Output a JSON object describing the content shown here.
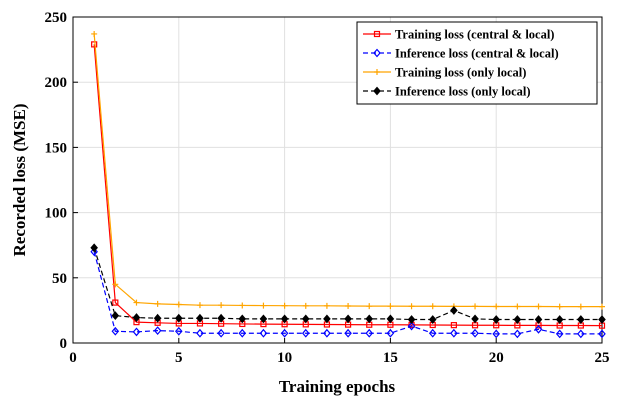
{
  "chart_data": {
    "type": "line",
    "xlabel": "Training epochs",
    "ylabel": "Recorded loss (MSE)",
    "xlim": [
      0,
      25
    ],
    "ylim": [
      0,
      250
    ],
    "xticks": [
      0,
      5,
      10,
      15,
      20,
      25
    ],
    "yticks": [
      0,
      50,
      100,
      150,
      200,
      250
    ],
    "grid": true,
    "legend_position": "top-right",
    "x": [
      1,
      2,
      3,
      4,
      5,
      6,
      7,
      8,
      9,
      10,
      11,
      12,
      13,
      14,
      15,
      16,
      17,
      18,
      19,
      20,
      21,
      22,
      23,
      24,
      25
    ],
    "series": [
      {
        "name": "Training loss (central & local)",
        "color": "#ff0000",
        "line_style": "solid",
        "marker": "square",
        "values": [
          229,
          31,
          16,
          15.5,
          15,
          15,
          14.8,
          14.6,
          14.5,
          14.4,
          14.3,
          14.2,
          14.1,
          14,
          14,
          13.9,
          13.8,
          13.7,
          13.6,
          13.6,
          13.5,
          13.5,
          13.4,
          13.4,
          13.3
        ]
      },
      {
        "name": "Inference loss (central & local)",
        "color": "#0000ff",
        "line_style": "dashed",
        "marker": "diamond",
        "values": [
          70,
          9,
          8.5,
          9.5,
          9,
          7.5,
          7.5,
          7.5,
          7.5,
          7.5,
          7.5,
          7.5,
          7.5,
          7.5,
          7.5,
          13,
          7.5,
          7.5,
          7.5,
          7,
          7,
          10.5,
          7,
          7,
          7
        ]
      },
      {
        "name": "Training loss (only local)",
        "color": "#ffa500",
        "line_style": "solid",
        "marker": "plus",
        "values": [
          237,
          45,
          31,
          30,
          29.5,
          29,
          29,
          28.8,
          28.7,
          28.6,
          28.5,
          28.5,
          28.4,
          28.3,
          28.3,
          28.2,
          28.2,
          28.1,
          28.1,
          28,
          28,
          28,
          27.9,
          27.9,
          27.9
        ]
      },
      {
        "name": "Inference loss (only local)",
        "color": "#000000",
        "line_style": "dashed",
        "marker": "diamond",
        "values": [
          73,
          21,
          19.5,
          19,
          19,
          19,
          19,
          18.5,
          18.5,
          18.5,
          18.5,
          18.5,
          18.5,
          18.5,
          18.5,
          18,
          18,
          25,
          18.5,
          18,
          18,
          18,
          18,
          18,
          18
        ]
      }
    ]
  }
}
